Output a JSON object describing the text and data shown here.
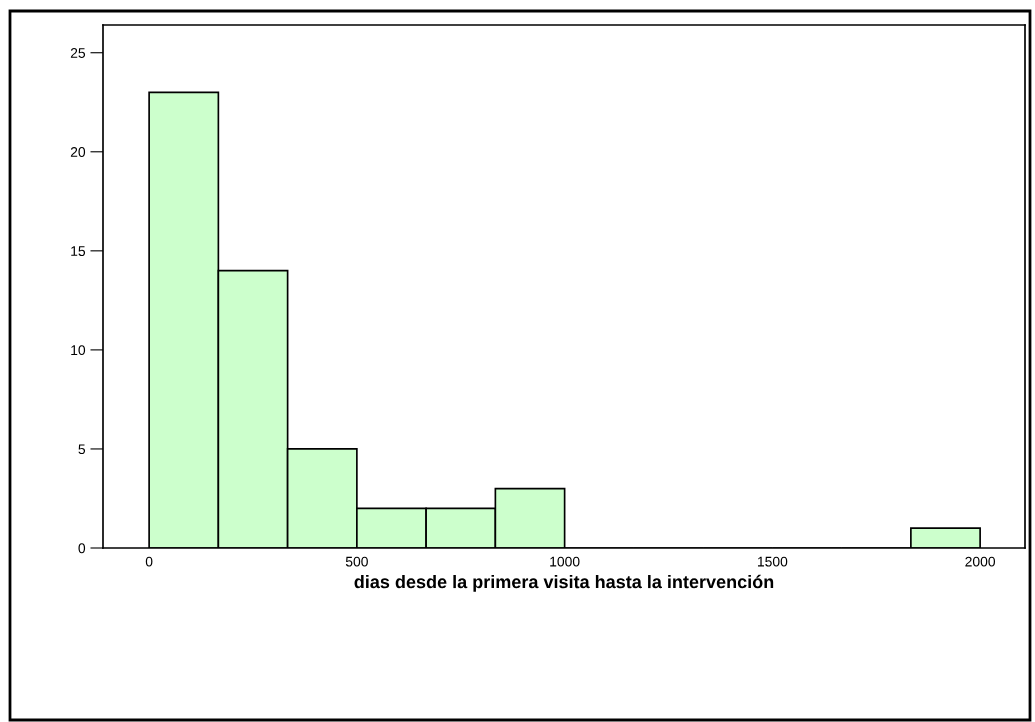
{
  "chart_data": {
    "type": "histogram",
    "xlabel": "dias desde la primera visita hasta la intervención",
    "bins": [
      0,
      166.67,
      333.33,
      500,
      666.67,
      833.33,
      1000,
      1166.67,
      1333.33,
      1500,
      1666.67,
      1833.33,
      2000
    ],
    "values": [
      23,
      14,
      5,
      2,
      2,
      3,
      0,
      0,
      0,
      0,
      0,
      1
    ],
    "color": "#ccffcc",
    "xlim": [
      -111,
      2108
    ],
    "xticks": [
      0,
      500,
      1000,
      1500,
      2000
    ],
    "ylim": [
      0,
      26.4
    ],
    "yticks": [
      0,
      5,
      10,
      15,
      20,
      25
    ],
    "grid": false
  }
}
